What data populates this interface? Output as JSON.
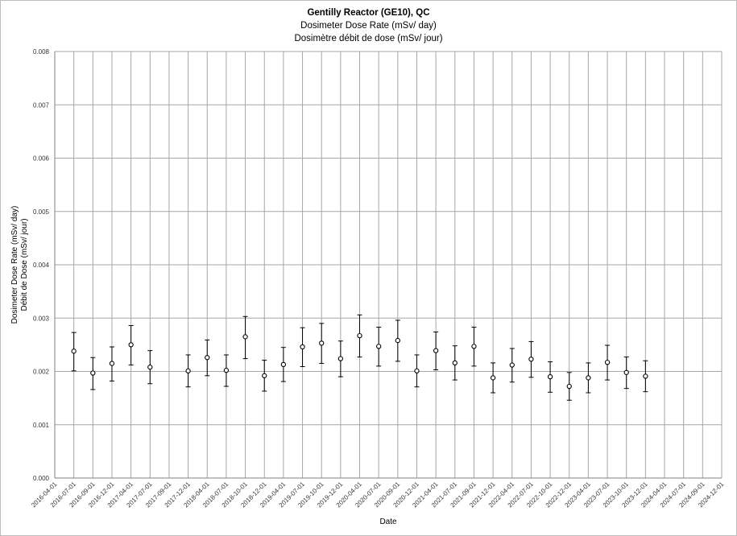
{
  "chart_data": {
    "type": "scatter",
    "title": "Gentilly Reactor (GE10), QC",
    "subtitle_en": "Dosimeter Dose Rate (mSv/ day)",
    "subtitle_fr": "Dosimètre débit de dose (mSv/ jour)",
    "xlabel": "Date",
    "ylabel_en": "Dosimeter Dose Rate (mSv/ day)",
    "ylabel_fr": "Débit de Dose (mSv/ jour)",
    "ylim": [
      0,
      0.008
    ],
    "yticks": [
      "0.000",
      "0.001",
      "0.002",
      "0.003",
      "0.004",
      "0.005",
      "0.006",
      "0.007",
      "0.008"
    ],
    "xticks": [
      "2016-04-01",
      "2016-07-01",
      "2016-09-01",
      "2016-12-01",
      "2017-04-01",
      "2017-07-01",
      "2017-09-01",
      "2017-12-01",
      "2018-04-01",
      "2018-07-01",
      "2018-10-01",
      "2018-12-01",
      "2019-04-01",
      "2019-07-01",
      "2019-10-01",
      "2019-12-01",
      "2020-04-01",
      "2020-07-01",
      "2020-09-01",
      "2020-12-01",
      "2021-04-01",
      "2021-07-01",
      "2021-09-01",
      "2021-12-01",
      "2022-04-01",
      "2022-07-01",
      "2022-10-01",
      "2022-12-01",
      "2023-04-01",
      "2023-07-01",
      "2023-10-01",
      "2023-12-01",
      "2024-04-01",
      "2024-07-01",
      "2024-09-01",
      "2024-12-01"
    ],
    "grid": true,
    "points": [
      {
        "x": "2016-07-01",
        "y": 0.00238,
        "err_low": 0.00201,
        "err_high": 0.00273
      },
      {
        "x": "2016-09-01",
        "y": 0.00197,
        "err_low": 0.00166,
        "err_high": 0.00226
      },
      {
        "x": "2016-12-01",
        "y": 0.00215,
        "err_low": 0.00182,
        "err_high": 0.00246
      },
      {
        "x": "2017-04-01",
        "y": 0.0025,
        "err_low": 0.00212,
        "err_high": 0.00286
      },
      {
        "x": "2017-07-01",
        "y": 0.00208,
        "err_low": 0.00177,
        "err_high": 0.00239
      },
      {
        "x": "2017-12-01",
        "y": 0.00201,
        "err_low": 0.00171,
        "err_high": 0.00231
      },
      {
        "x": "2018-04-01",
        "y": 0.00226,
        "err_low": 0.00192,
        "err_high": 0.00259
      },
      {
        "x": "2018-07-01",
        "y": 0.00202,
        "err_low": 0.00172,
        "err_high": 0.00231
      },
      {
        "x": "2018-10-01",
        "y": 0.00265,
        "err_low": 0.00224,
        "err_high": 0.00303
      },
      {
        "x": "2018-12-01",
        "y": 0.00192,
        "err_low": 0.00163,
        "err_high": 0.00221
      },
      {
        "x": "2019-04-01",
        "y": 0.00213,
        "err_low": 0.00181,
        "err_high": 0.00245
      },
      {
        "x": "2019-07-01",
        "y": 0.00246,
        "err_low": 0.00209,
        "err_high": 0.00282
      },
      {
        "x": "2019-10-01",
        "y": 0.00253,
        "err_low": 0.00215,
        "err_high": 0.0029
      },
      {
        "x": "2019-12-01",
        "y": 0.00224,
        "err_low": 0.0019,
        "err_high": 0.00257
      },
      {
        "x": "2020-04-01",
        "y": 0.00267,
        "err_low": 0.00227,
        "err_high": 0.00306
      },
      {
        "x": "2020-07-01",
        "y": 0.00247,
        "err_low": 0.0021,
        "err_high": 0.00283
      },
      {
        "x": "2020-09-01",
        "y": 0.00258,
        "err_low": 0.00219,
        "err_high": 0.00296
      },
      {
        "x": "2020-12-01",
        "y": 0.00201,
        "err_low": 0.00171,
        "err_high": 0.00231
      },
      {
        "x": "2021-04-01",
        "y": 0.00239,
        "err_low": 0.00203,
        "err_high": 0.00274
      },
      {
        "x": "2021-07-01",
        "y": 0.00216,
        "err_low": 0.00184,
        "err_high": 0.00248
      },
      {
        "x": "2021-09-01",
        "y": 0.00247,
        "err_low": 0.0021,
        "err_high": 0.00283
      },
      {
        "x": "2021-12-01",
        "y": 0.00188,
        "err_low": 0.0016,
        "err_high": 0.00216
      },
      {
        "x": "2022-04-01",
        "y": 0.00212,
        "err_low": 0.0018,
        "err_high": 0.00243
      },
      {
        "x": "2022-07-01",
        "y": 0.00223,
        "err_low": 0.00189,
        "err_high": 0.00256
      },
      {
        "x": "2022-10-01",
        "y": 0.0019,
        "err_low": 0.00161,
        "err_high": 0.00218
      },
      {
        "x": "2022-12-01",
        "y": 0.00172,
        "err_low": 0.00146,
        "err_high": 0.00198
      },
      {
        "x": "2023-04-01",
        "y": 0.00188,
        "err_low": 0.0016,
        "err_high": 0.00216
      },
      {
        "x": "2023-07-01",
        "y": 0.00217,
        "err_low": 0.00184,
        "err_high": 0.00249
      },
      {
        "x": "2023-10-01",
        "y": 0.00198,
        "err_low": 0.00168,
        "err_high": 0.00227
      },
      {
        "x": "2023-12-01",
        "y": 0.00191,
        "err_low": 0.00162,
        "err_high": 0.0022
      }
    ],
    "colors": {
      "marker": "#000000",
      "errorbar": "#000000",
      "grid": "#a6a6a6"
    }
  }
}
